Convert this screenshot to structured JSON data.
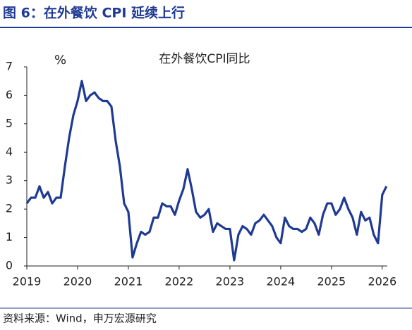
{
  "title": "图 6：在外餐饮 CPI 延续上行",
  "source": "资料来源：Wind，申万宏源研究",
  "chart_data": {
    "type": "line",
    "ylabel": "%",
    "x": [
      2019,
      2019.083,
      2019.167,
      2019.25,
      2019.333,
      2019.417,
      2019.5,
      2019.583,
      2019.667,
      2019.75,
      2019.833,
      2019.917,
      2020,
      2020.083,
      2020.167,
      2020.25,
      2020.333,
      2020.417,
      2020.5,
      2020.583,
      2020.667,
      2020.75,
      2020.833,
      2020.917,
      2021,
      2021.083,
      2021.167,
      2021.25,
      2021.333,
      2021.417,
      2021.5,
      2021.583,
      2021.667,
      2021.75,
      2021.833,
      2021.917,
      2022,
      2022.083,
      2022.167,
      2022.25,
      2022.333,
      2022.417,
      2022.5,
      2022.583,
      2022.667,
      2022.75,
      2022.833,
      2022.917,
      2023,
      2023.083,
      2023.167,
      2023.25,
      2023.333,
      2023.417,
      2023.5,
      2023.583,
      2023.667,
      2023.75,
      2023.833,
      2023.917,
      2024,
      2024.083,
      2024.167,
      2024.25,
      2024.333,
      2024.417,
      2024.5,
      2024.583,
      2024.667,
      2024.75,
      2024.833,
      2024.917,
      2025,
      2025.083,
      2025.167,
      2025.25,
      2025.333,
      2025.417,
      2025.5,
      2025.583,
      2025.667,
      2025.75,
      2025.833,
      2025.917,
      2026,
      2026.083
    ],
    "series": [
      {
        "name": "在外餐饮CPI同比",
        "color": "#1f3a93",
        "values": [
          2.2,
          2.4,
          2.4,
          2.8,
          2.4,
          2.6,
          2.2,
          2.4,
          2.4,
          3.5,
          4.5,
          5.3,
          5.8,
          6.5,
          5.8,
          6.0,
          6.1,
          5.9,
          5.8,
          5.8,
          5.6,
          4.4,
          3.5,
          2.2,
          1.9,
          0.3,
          0.8,
          1.2,
          1.1,
          1.2,
          1.7,
          1.7,
          2.2,
          2.1,
          2.1,
          1.8,
          2.3,
          2.7,
          3.4,
          2.7,
          1.9,
          1.7,
          1.8,
          2.0,
          1.2,
          1.5,
          1.4,
          1.3,
          1.3,
          0.2,
          1.1,
          1.4,
          1.3,
          1.1,
          1.5,
          1.6,
          1.8,
          1.6,
          1.4,
          1.0,
          0.8,
          1.7,
          1.4,
          1.3,
          1.3,
          1.2,
          1.3,
          1.7,
          1.5,
          1.1,
          1.8,
          2.2,
          2.2,
          1.8,
          2.0,
          2.4,
          2.0,
          1.7,
          1.1,
          1.9,
          1.6,
          1.7,
          1.1,
          0.8,
          2.5,
          2.8
        ]
      }
    ],
    "xlim": [
      2019,
      2026.1
    ],
    "xticks": [
      2019,
      2020,
      2021,
      2022,
      2023,
      2024,
      2025,
      2026
    ],
    "ylim": [
      0,
      7
    ],
    "yticks": [
      0,
      1,
      2,
      3,
      4,
      5,
      6,
      7
    ],
    "grid": false
  }
}
